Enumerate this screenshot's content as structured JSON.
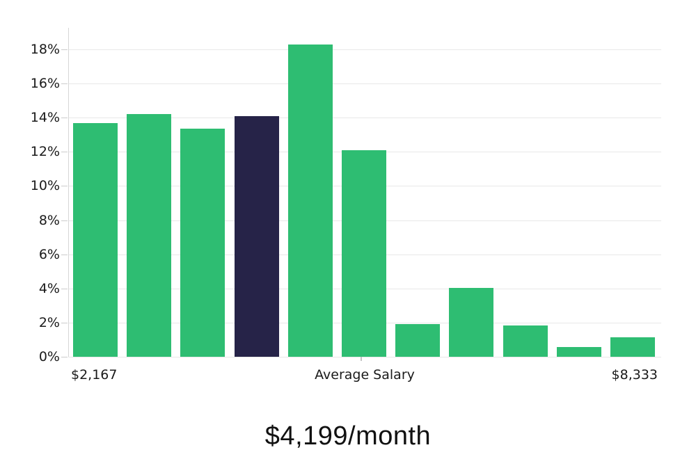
{
  "chart_data": {
    "type": "bar",
    "title": "$4,199/month",
    "xlabel": "",
    "ylabel": "",
    "series_name": "salary-distribution-percent",
    "values": [
      13.7,
      14.2,
      13.35,
      14.1,
      18.3,
      12.1,
      1.9,
      4.05,
      1.85,
      0.55,
      1.15
    ],
    "highlighted_bar_index": 3,
    "y_ticks": [
      "0%",
      "2%",
      "4%",
      "6%",
      "8%",
      "10%",
      "12%",
      "14%",
      "16%",
      "18%"
    ],
    "y_tick_values": [
      0,
      2,
      4,
      6,
      8,
      10,
      12,
      14,
      16,
      18
    ],
    "ylim": [
      0,
      18.3
    ],
    "grid": "horizontal",
    "legend": "none",
    "x_axis_labels": {
      "left": "$2,167",
      "center": "Average Salary",
      "right": "$8,333"
    },
    "colors": {
      "bar": "#2ebd72",
      "highlight": "#262348",
      "grid": "#e8e8e8",
      "axis": "#d6d6d6",
      "tick": "#cccccc",
      "text": "#1a1a1a"
    }
  },
  "footer": {
    "average_salary_text": "$4,199/month"
  }
}
